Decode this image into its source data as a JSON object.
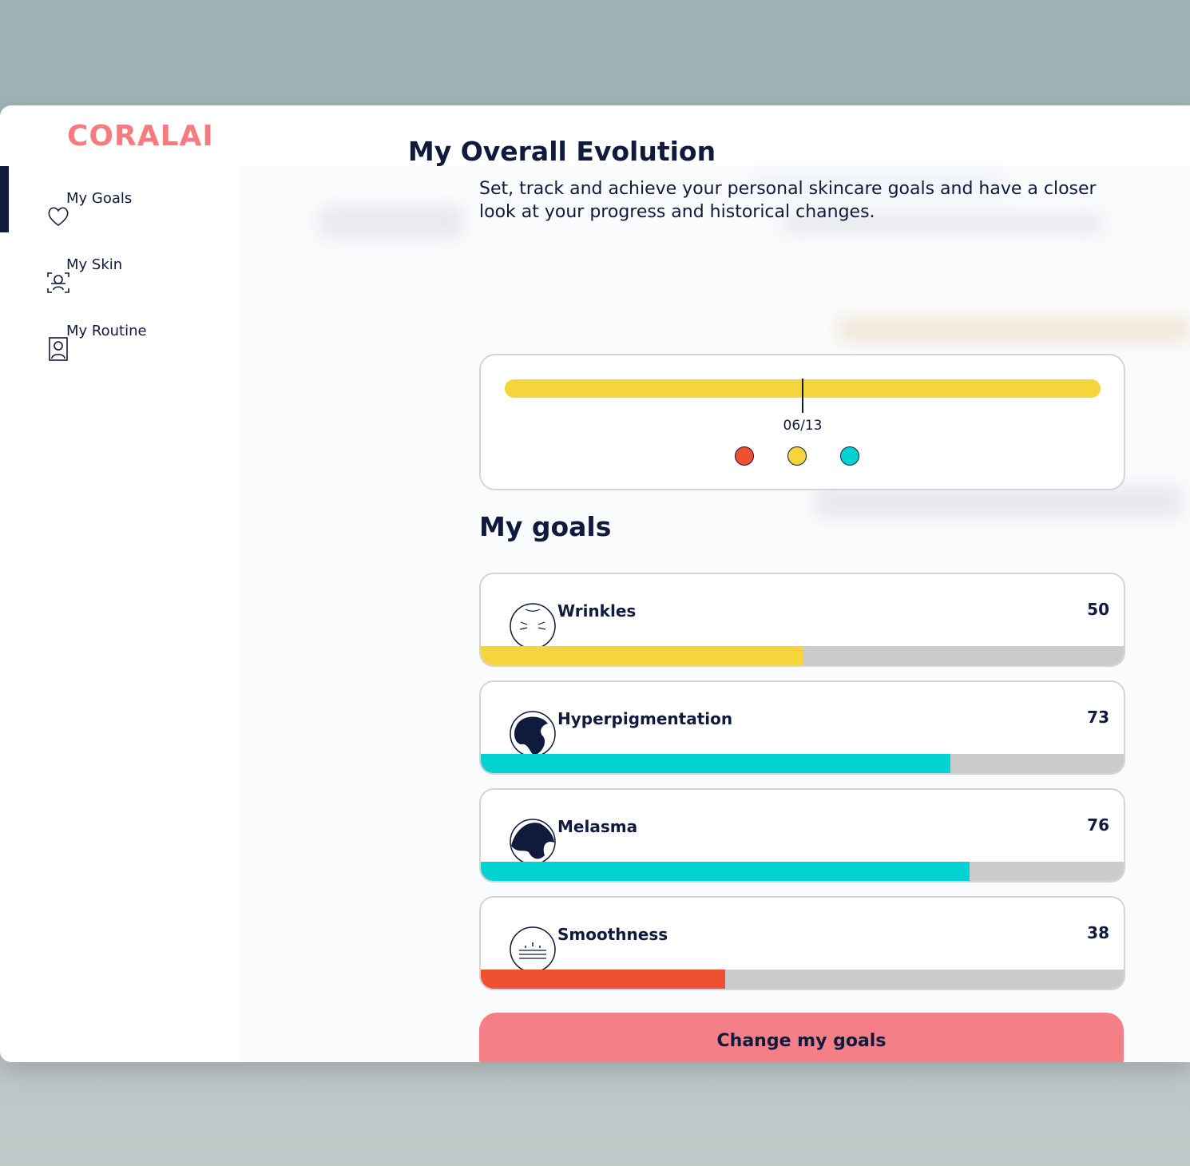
{
  "brand": "CORALAI",
  "nav": [
    {
      "label": "My Goals",
      "active": true
    },
    {
      "label": "My Skin",
      "active": false
    },
    {
      "label": "My Routine",
      "active": false
    }
  ],
  "evolution": {
    "title": "My Overall Evolution",
    "description": "Set, track and achieve your personal skincare goals and have a closer look at your progress and historical changes.",
    "date_label": "06/13"
  },
  "goals_title": "My goals",
  "goals": [
    {
      "name": "Wrinkles",
      "value": 50,
      "color": "#f6d43c"
    },
    {
      "name": "Hyperpigmentation",
      "value": 73,
      "color": "#03d2d2"
    },
    {
      "name": "Melasma",
      "value": 76,
      "color": "#03d2d2"
    },
    {
      "name": "Smoothness",
      "value": 38,
      "color": "#ee5031"
    }
  ],
  "button": "Change my goals"
}
